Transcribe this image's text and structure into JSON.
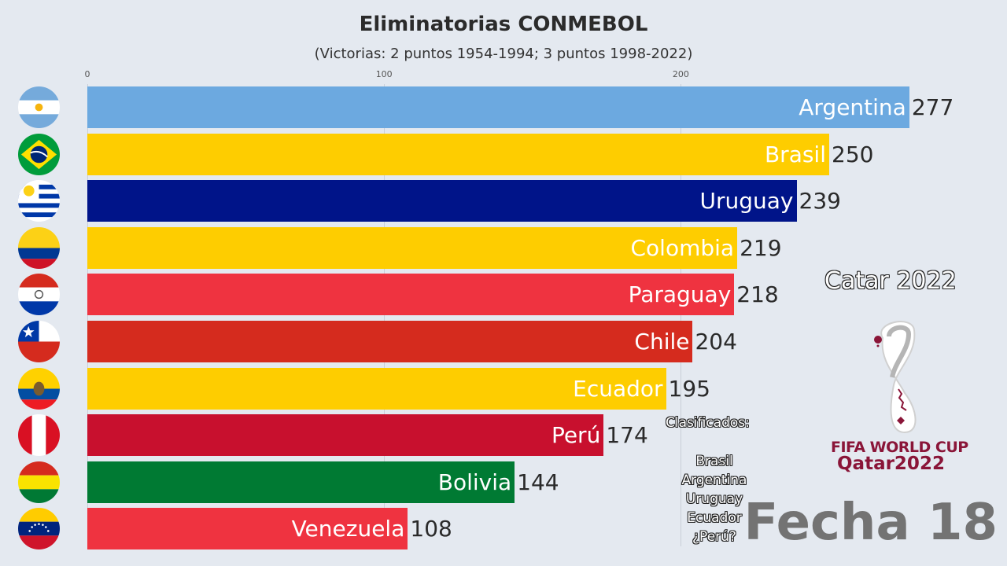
{
  "header": {
    "title": "Eliminatorias CONMEBOL",
    "subtitle": "(Victorias: 2 puntos 1954-1994; 3 puntos 1998-2022)"
  },
  "axis": {
    "ticks": [
      {
        "label": "0",
        "value": 0
      },
      {
        "label": "100",
        "value": 100
      },
      {
        "label": "200",
        "value": 200
      }
    ]
  },
  "bars": [
    {
      "country": "Argentina",
      "value": "277",
      "color": "#6ca9e0",
      "flag": "argentina-flag-icon"
    },
    {
      "country": "Brasil",
      "value": "250",
      "color": "#fecd00",
      "flag": "brazil-flag-icon"
    },
    {
      "country": "Uruguay",
      "value": "239",
      "color": "#001489",
      "flag": "uruguay-flag-icon"
    },
    {
      "country": "Colombia",
      "value": "219",
      "color": "#fecd00",
      "flag": "colombia-flag-icon"
    },
    {
      "country": "Paraguay",
      "value": "218",
      "color": "#ef3340",
      "flag": "paraguay-flag-icon"
    },
    {
      "country": "Chile",
      "value": "204",
      "color": "#d52b1e",
      "flag": "chile-flag-icon"
    },
    {
      "country": "Ecuador",
      "value": "195",
      "color": "#fecd00",
      "flag": "ecuador-flag-icon"
    },
    {
      "country": "Perú",
      "value": "174",
      "color": "#c8102e",
      "flag": "peru-flag-icon"
    },
    {
      "country": "Bolivia",
      "value": "144",
      "color": "#007a33",
      "flag": "bolivia-flag-icon"
    },
    {
      "country": "Venezuela",
      "value": "108",
      "color": "#ef3340",
      "flag": "venezuela-flag-icon"
    }
  ],
  "side_panel": {
    "edition": "Catar 2022",
    "qualified_title": "Clasificados:",
    "qualified": [
      "Brasil",
      "Argentina",
      "Uruguay",
      "Ecuador",
      "¿Perú?"
    ],
    "logo_line1": "FIFA WORLD CUP",
    "logo_line2": "Qatar2022",
    "round_label": "Fecha 18"
  },
  "chart_data": {
    "type": "bar",
    "orientation": "horizontal",
    "title": "Eliminatorias CONMEBOL",
    "subtitle": "(Victorias: 2 puntos 1954-1994; 3 puntos 1998-2022)",
    "categories": [
      "Argentina",
      "Brasil",
      "Uruguay",
      "Colombia",
      "Paraguay",
      "Chile",
      "Ecuador",
      "Perú",
      "Bolivia",
      "Venezuela"
    ],
    "values": [
      277,
      250,
      239,
      219,
      218,
      204,
      195,
      174,
      144,
      108
    ],
    "colors": [
      "#6ca9e0",
      "#fecd00",
      "#001489",
      "#fecd00",
      "#ef3340",
      "#d52b1e",
      "#fecd00",
      "#c8102e",
      "#007a33",
      "#ef3340"
    ],
    "xlabel": "",
    "ylabel": "",
    "xticks": [
      0,
      100,
      200
    ],
    "xlim": [
      0,
      290
    ],
    "grid": true,
    "annotations": [
      "Catar 2022",
      "Clasificados: Brasil, Argentina, Uruguay, Ecuador, ¿Perú?",
      "Fecha 18"
    ]
  }
}
